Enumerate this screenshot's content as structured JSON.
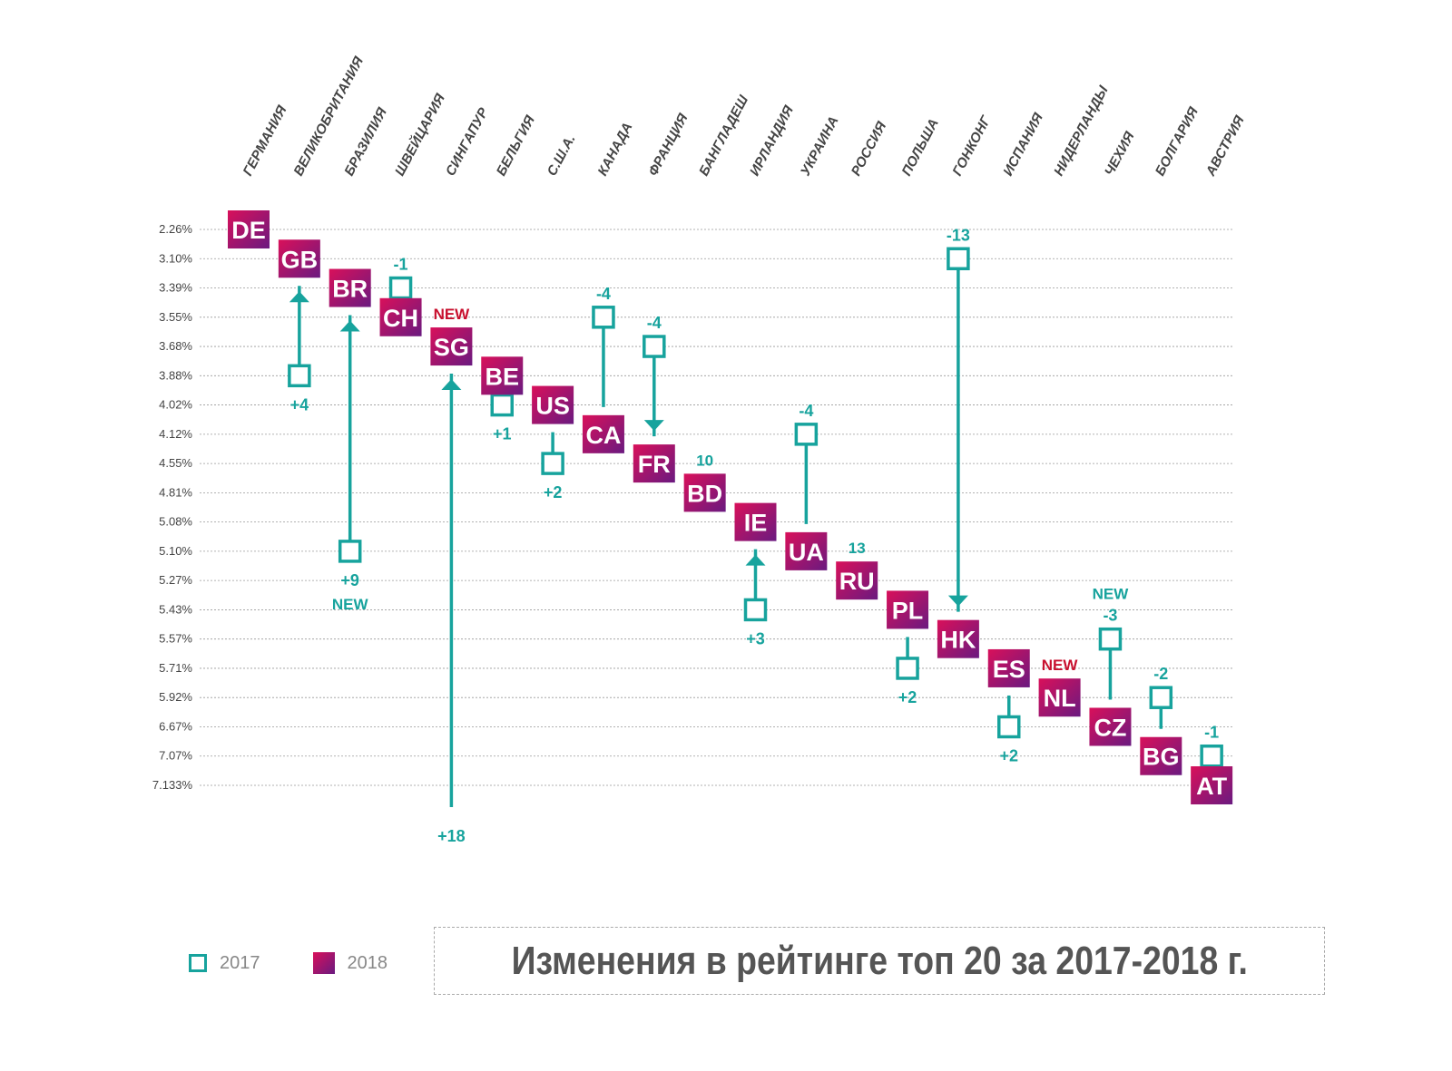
{
  "chart_data": {
    "type": "rank-change",
    "title": "Изменения в рейтинге топ 20 за 2017-2018 г.",
    "y_ticks": [
      "2.26%",
      "3.10%",
      "3.39%",
      "3.55%",
      "3.68%",
      "3.88%",
      "4.02%",
      "4.12%",
      "4.55%",
      "4.81%",
      "5.08%",
      "5.10%",
      "5.27%",
      "5.43%",
      "5.57%",
      "5.71%",
      "5.92%",
      "6.67%",
      "7.07%",
      "7.133%"
    ],
    "grid": true,
    "legend": {
      "placement": "bottom-left",
      "items": [
        {
          "label": "2017",
          "style": "outline-square",
          "color": "#17a39d"
        },
        {
          "label": "2018",
          "style": "filled-square",
          "color": "#b0106a"
        }
      ]
    },
    "colors": {
      "teal": "#17a39d",
      "box_start": "#d9105a",
      "box_end": "#6a1a80",
      "new_red": "#c8102e"
    },
    "countries": [
      {
        "code": "DE",
        "name": "ГЕРМАНИЯ",
        "rank_2018": 1,
        "rank_2017": null,
        "change": ""
      },
      {
        "code": "GB",
        "name": "ВЕЛИКОБРИТАНИЯ",
        "rank_2018": 2,
        "rank_2017": 6,
        "change": "+4",
        "arrow": true
      },
      {
        "code": "BR",
        "name": "БРАЗИЛИЯ",
        "rank_2018": 3,
        "rank_2017": 12,
        "change": "+9",
        "arrow": true,
        "note": "NEW",
        "note_color": "teal",
        "note_pos": "below"
      },
      {
        "code": "CH",
        "name": "ШВЕЙЦАРИЯ",
        "rank_2018": 4,
        "rank_2017": 3,
        "change": "-1"
      },
      {
        "code": "SG",
        "name": "СИНГАПУР",
        "rank_2018": 5,
        "rank_2017": 23,
        "change": "+18",
        "arrow": true,
        "note": "NEW",
        "note_color": "red",
        "note_pos": "top"
      },
      {
        "code": "BE",
        "name": "БЕЛЬГИЯ",
        "rank_2018": 6,
        "rank_2017": 7,
        "change": "+1"
      },
      {
        "code": "US",
        "name": "С.Ш.А.",
        "rank_2018": 7,
        "rank_2017": 9,
        "change": "+2"
      },
      {
        "code": "CA",
        "name": "КАНАДА",
        "rank_2018": 8,
        "rank_2017": 4,
        "change": "-4"
      },
      {
        "code": "FR",
        "name": "ФРАНЦИЯ",
        "rank_2018": 9,
        "rank_2017": 5,
        "change": "-4",
        "arrow": true
      },
      {
        "code": "BD",
        "name": "БАНГЛАДЕШ",
        "rank_2018": 10,
        "rank_2017": null,
        "change": "",
        "note": "10",
        "note_color": "teal",
        "note_pos": "top"
      },
      {
        "code": "IE",
        "name": "ИРЛАНДИЯ",
        "rank_2018": 11,
        "rank_2017": 14,
        "change": "+3",
        "arrow": true
      },
      {
        "code": "UA",
        "name": "УКРАИНА",
        "rank_2018": 12,
        "rank_2017": 8,
        "change": "-4"
      },
      {
        "code": "RU",
        "name": "РОССИЯ",
        "rank_2018": 13,
        "rank_2017": null,
        "change": "",
        "note": "13",
        "note_color": "teal",
        "note_pos": "top"
      },
      {
        "code": "PL",
        "name": "ПОЛЬША",
        "rank_2018": 14,
        "rank_2017": 16,
        "change": "+2"
      },
      {
        "code": "HK",
        "name": "ГОНКОНГ",
        "rank_2018": 15,
        "rank_2017": 2,
        "change": "-13",
        "arrow": true
      },
      {
        "code": "ES",
        "name": "ИСПАНИЯ",
        "rank_2018": 16,
        "rank_2017": 18,
        "change": "+2"
      },
      {
        "code": "NL",
        "name": "НИДЕРЛАНДЫ",
        "rank_2018": 17,
        "rank_2017": null,
        "change": "",
        "note": "NEW",
        "note_color": "red",
        "note_pos": "top"
      },
      {
        "code": "CZ",
        "name": "ЧЕХИЯ",
        "rank_2018": 18,
        "rank_2017": 15,
        "change": "-3",
        "note": "NEW",
        "note_color": "teal",
        "note_pos": "above-change"
      },
      {
        "code": "BG",
        "name": "БОЛГАРИЯ",
        "rank_2018": 19,
        "rank_2017": 17,
        "change": "-2"
      },
      {
        "code": "AT",
        "name": "АВСТРИЯ",
        "rank_2018": 20,
        "rank_2017": 19,
        "change": "-1"
      }
    ]
  }
}
